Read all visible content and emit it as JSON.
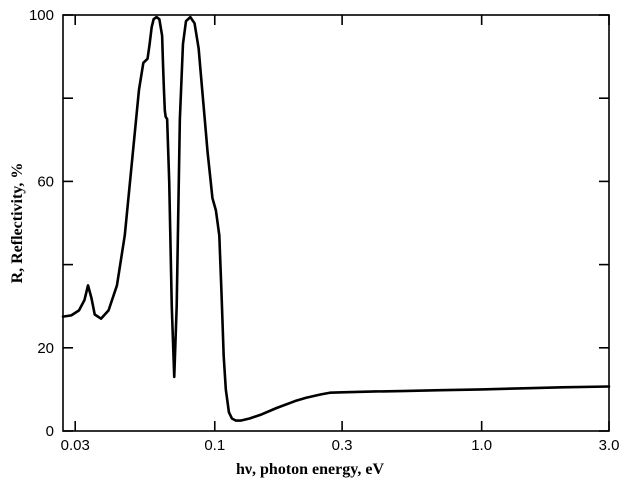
{
  "chart_data": {
    "type": "line",
    "title": "",
    "xlabel": "hν, photon energy, eV",
    "ylabel": "R, Reflectivity, %",
    "x_scale": "log",
    "xlim": [
      0.027,
      3.0
    ],
    "ylim": [
      0,
      100
    ],
    "grid": false,
    "x_ticks": [
      {
        "value": 0.03,
        "label": "0.03"
      },
      {
        "value": 0.1,
        "label": "0.1"
      },
      {
        "value": 0.3,
        "label": "0.3"
      },
      {
        "value": 1.0,
        "label": "1.0"
      },
      {
        "value": 3.0,
        "label": "3.0"
      }
    ],
    "y_ticks": [
      {
        "value": 0,
        "label": "0"
      },
      {
        "value": 20,
        "label": "20"
      },
      {
        "value": 60,
        "label": "60"
      },
      {
        "value": 100,
        "label": "100"
      }
    ],
    "y_minor_ticks": [
      40,
      80
    ],
    "series": [
      {
        "color": "#000000",
        "x": [
          0.027,
          0.029,
          0.031,
          0.0325,
          0.0335,
          0.0345,
          0.0355,
          0.0375,
          0.04,
          0.043,
          0.046,
          0.049,
          0.052,
          0.054,
          0.055,
          0.056,
          0.057,
          0.058,
          0.059,
          0.0605,
          0.062,
          0.0635,
          0.064,
          0.0645,
          0.065,
          0.0655,
          0.0663,
          0.0675,
          0.069,
          0.0705,
          0.072,
          0.074,
          0.076,
          0.078,
          0.081,
          0.084,
          0.087,
          0.09,
          0.092,
          0.094,
          0.096,
          0.098,
          0.101,
          0.104,
          0.106,
          0.108,
          0.11,
          0.113,
          0.116,
          0.12,
          0.125,
          0.135,
          0.15,
          0.17,
          0.2,
          0.22,
          0.25,
          0.27,
          0.3,
          0.4,
          0.5,
          0.7,
          1.0,
          1.5,
          2.0,
          3.0
        ],
        "y": [
          27.5,
          27.8,
          29,
          31.5,
          35,
          32,
          28,
          27,
          29,
          35,
          47,
          65,
          82,
          88.5,
          89,
          89.5,
          93,
          97,
          99,
          99.5,
          99,
          95,
          88,
          82,
          77,
          75.5,
          75,
          60,
          30,
          13,
          30,
          75,
          93,
          98.5,
          99.5,
          98,
          92,
          81,
          74,
          67,
          61.5,
          56,
          53,
          47,
          33,
          18,
          10,
          4.5,
          3,
          2.5,
          2.5,
          3,
          4,
          5.5,
          7.2,
          8,
          8.8,
          9.2,
          9.3,
          9.5,
          9.6,
          9.8,
          10,
          10.3,
          10.5,
          10.7
        ]
      }
    ]
  }
}
